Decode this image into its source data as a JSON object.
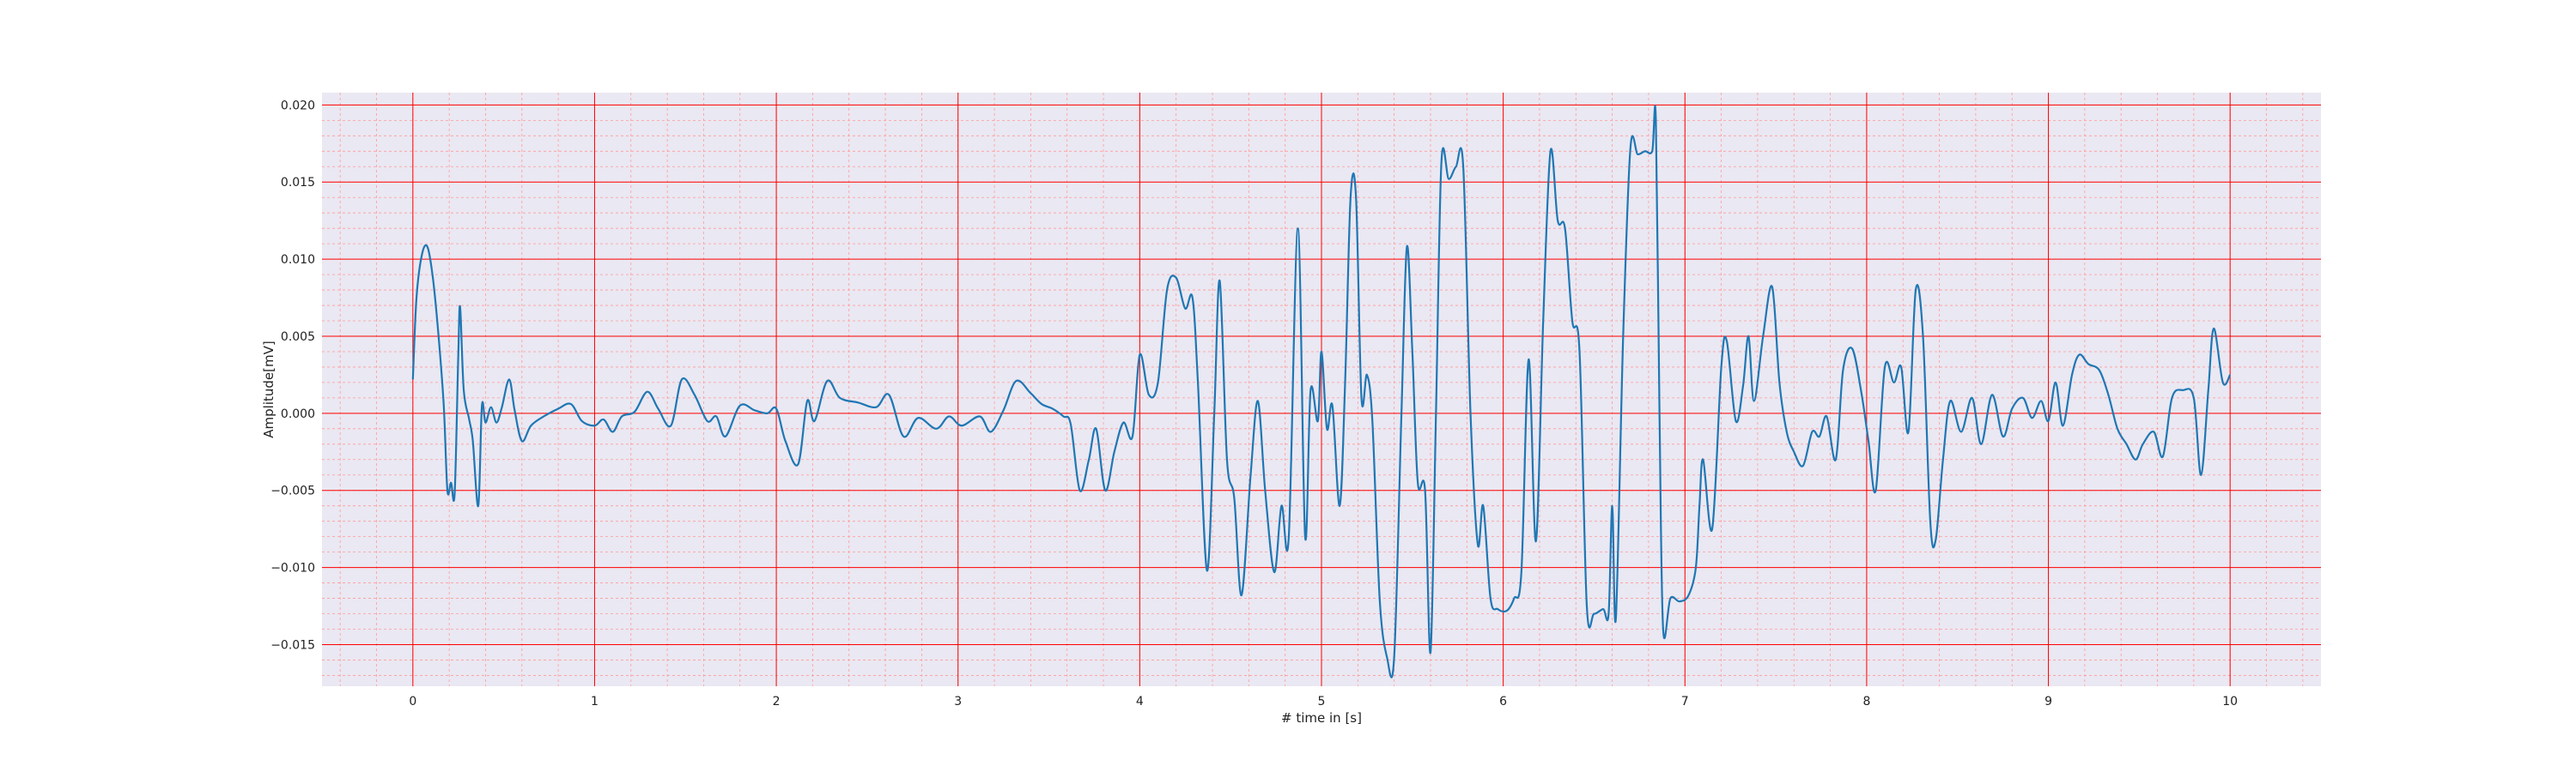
{
  "chart_data": {
    "type": "line",
    "title": "",
    "xlabel": "# time in [s]",
    "ylabel": "Amplitude[mV]",
    "xlim": [
      -0.5,
      10.5
    ],
    "ylim": [
      -0.0177,
      0.0208
    ],
    "x_ticks": [
      0,
      1,
      2,
      3,
      4,
      5,
      6,
      7,
      8,
      9,
      10
    ],
    "x_tick_labels": [
      "0",
      "1",
      "2",
      "3",
      "4",
      "5",
      "6",
      "7",
      "8",
      "9",
      "10"
    ],
    "y_ticks": [
      -0.015,
      -0.01,
      -0.005,
      0.0,
      0.005,
      0.01,
      0.015,
      0.02
    ],
    "y_tick_labels": [
      "−0.015",
      "−0.010",
      "−0.005",
      "0.000",
      "0.005",
      "0.010",
      "0.015",
      "0.020"
    ],
    "grid": {
      "major": true,
      "minor": true,
      "major_color": "#ff0000",
      "minor_color": "#ff9a9a"
    },
    "background_color": "#eae8f2",
    "series": [
      {
        "color": "#1f77b4",
        "points": [
          [
            0.0,
            0.0022
          ],
          [
            0.02,
            0.0075
          ],
          [
            0.05,
            0.0103
          ],
          [
            0.08,
            0.0108
          ],
          [
            0.11,
            0.0088
          ],
          [
            0.14,
            0.0052
          ],
          [
            0.17,
            0.0005
          ],
          [
            0.19,
            -0.005
          ],
          [
            0.21,
            -0.0045
          ],
          [
            0.23,
            -0.0052
          ],
          [
            0.25,
            0.0038
          ],
          [
            0.26,
            0.0069
          ],
          [
            0.28,
            0.0015
          ],
          [
            0.31,
            -0.0004
          ],
          [
            0.33,
            -0.0018
          ],
          [
            0.36,
            -0.006
          ],
          [
            0.38,
            0.0005
          ],
          [
            0.4,
            -0.0006
          ],
          [
            0.43,
            0.0004
          ],
          [
            0.46,
            -0.0006
          ],
          [
            0.49,
            0.0004
          ],
          [
            0.53,
            0.0022
          ],
          [
            0.56,
            0.0002
          ],
          [
            0.6,
            -0.0018
          ],
          [
            0.65,
            -0.0008
          ],
          [
            0.72,
            -0.0002
          ],
          [
            0.8,
            0.0003
          ],
          [
            0.87,
            0.0006
          ],
          [
            0.93,
            -0.0005
          ],
          [
            1.0,
            -0.0008
          ],
          [
            1.05,
            -0.0004
          ],
          [
            1.1,
            -0.0012
          ],
          [
            1.15,
            -0.0002
          ],
          [
            1.22,
            0.0001
          ],
          [
            1.29,
            0.0014
          ],
          [
            1.35,
            0.0003
          ],
          [
            1.42,
            -0.0008
          ],
          [
            1.48,
            0.0022
          ],
          [
            1.55,
            0.0012
          ],
          [
            1.62,
            -0.0005
          ],
          [
            1.67,
            -0.0002
          ],
          [
            1.72,
            -0.0015
          ],
          [
            1.8,
            0.0005
          ],
          [
            1.88,
            0.0002
          ],
          [
            1.95,
            0.0
          ],
          [
            2.0,
            0.0003
          ],
          [
            2.05,
            -0.0018
          ],
          [
            2.12,
            -0.0033
          ],
          [
            2.17,
            0.0008
          ],
          [
            2.21,
            -0.0005
          ],
          [
            2.28,
            0.0021
          ],
          [
            2.35,
            0.001
          ],
          [
            2.45,
            0.0007
          ],
          [
            2.55,
            0.0004
          ],
          [
            2.62,
            0.0012
          ],
          [
            2.7,
            -0.0015
          ],
          [
            2.78,
            -0.0003
          ],
          [
            2.88,
            -0.001
          ],
          [
            2.95,
            -0.0002
          ],
          [
            3.02,
            -0.0008
          ],
          [
            3.12,
            -0.0002
          ],
          [
            3.18,
            -0.0012
          ],
          [
            3.25,
            0.0002
          ],
          [
            3.32,
            0.0021
          ],
          [
            3.4,
            0.0013
          ],
          [
            3.46,
            0.0006
          ],
          [
            3.52,
            0.0003
          ],
          [
            3.58,
            -0.0002
          ],
          [
            3.62,
            -0.0007
          ],
          [
            3.67,
            -0.005
          ],
          [
            3.72,
            -0.003
          ],
          [
            3.76,
            -0.001
          ],
          [
            3.81,
            -0.005
          ],
          [
            3.86,
            -0.0025
          ],
          [
            3.91,
            -0.0006
          ],
          [
            3.96,
            -0.0015
          ],
          [
            4.0,
            0.0038
          ],
          [
            4.05,
            0.0012
          ],
          [
            4.1,
            0.002
          ],
          [
            4.15,
            0.008
          ],
          [
            4.2,
            0.0088
          ],
          [
            4.25,
            0.0068
          ],
          [
            4.29,
            0.0075
          ],
          [
            4.32,
            0.002
          ],
          [
            4.37,
            -0.0102
          ],
          [
            4.41,
            0.0
          ],
          [
            4.44,
            0.0086
          ],
          [
            4.48,
            -0.003
          ],
          [
            4.52,
            -0.0055
          ],
          [
            4.56,
            -0.0118
          ],
          [
            4.61,
            -0.004
          ],
          [
            4.65,
            0.0008
          ],
          [
            4.69,
            -0.005
          ],
          [
            4.74,
            -0.0103
          ],
          [
            4.78,
            -0.006
          ],
          [
            4.82,
            -0.008
          ],
          [
            4.87,
            0.012
          ],
          [
            4.91,
            -0.008
          ],
          [
            4.94,
            0.0015
          ],
          [
            4.98,
            -0.0005
          ],
          [
            5.0,
            0.004
          ],
          [
            5.03,
            -0.001
          ],
          [
            5.06,
            0.0005
          ],
          [
            5.1,
            -0.006
          ],
          [
            5.13,
            0.002
          ],
          [
            5.16,
            0.014
          ],
          [
            5.19,
            0.014
          ],
          [
            5.22,
            0.001
          ],
          [
            5.25,
            0.0025
          ],
          [
            5.28,
            -0.0005
          ],
          [
            5.32,
            -0.012
          ],
          [
            5.36,
            -0.0158
          ],
          [
            5.4,
            -0.0158
          ],
          [
            5.44,
            0.0
          ],
          [
            5.47,
            0.0108
          ],
          [
            5.5,
            0.004
          ],
          [
            5.53,
            -0.0045
          ],
          [
            5.57,
            -0.005
          ],
          [
            5.6,
            -0.0155
          ],
          [
            5.63,
            0.0
          ],
          [
            5.66,
            0.0163
          ],
          [
            5.7,
            0.0152
          ],
          [
            5.74,
            0.016
          ],
          [
            5.78,
            0.016
          ],
          [
            5.82,
            0.0
          ],
          [
            5.86,
            -0.0085
          ],
          [
            5.89,
            -0.006
          ],
          [
            5.93,
            -0.012
          ],
          [
            5.97,
            -0.0127
          ],
          [
            6.02,
            -0.0128
          ],
          [
            6.06,
            -0.012
          ],
          [
            6.1,
            -0.0103
          ],
          [
            6.14,
            0.0035
          ],
          [
            6.18,
            -0.0083
          ],
          [
            6.22,
            0.006
          ],
          [
            6.26,
            0.017
          ],
          [
            6.3,
            0.0125
          ],
          [
            6.34,
            0.012
          ],
          [
            6.38,
            0.006
          ],
          [
            6.42,
            0.004
          ],
          [
            6.46,
            -0.0125
          ],
          [
            6.5,
            -0.013
          ],
          [
            6.55,
            -0.0127
          ],
          [
            6.58,
            -0.013
          ],
          [
            6.6,
            -0.006
          ],
          [
            6.62,
            -0.0133
          ],
          [
            6.66,
            0.005
          ],
          [
            6.7,
            0.0172
          ],
          [
            6.74,
            0.0168
          ],
          [
            6.78,
            0.017
          ],
          [
            6.82,
            0.017
          ],
          [
            6.84,
            0.019
          ],
          [
            6.86,
            0.0
          ],
          [
            6.88,
            -0.014
          ],
          [
            6.92,
            -0.012
          ],
          [
            6.97,
            -0.0122
          ],
          [
            7.02,
            -0.0118
          ],
          [
            7.06,
            -0.01
          ],
          [
            7.08,
            -0.006
          ],
          [
            7.1,
            -0.003
          ],
          [
            7.15,
            -0.0075
          ],
          [
            7.2,
            0.003
          ],
          [
            7.23,
            0.0047
          ],
          [
            7.28,
            -0.0005
          ],
          [
            7.32,
            0.0018
          ],
          [
            7.35,
            0.005
          ],
          [
            7.38,
            0.0008
          ],
          [
            7.43,
            0.005
          ],
          [
            7.48,
            0.0082
          ],
          [
            7.52,
            0.002
          ],
          [
            7.56,
            -0.0012
          ],
          [
            7.6,
            -0.0025
          ],
          [
            7.65,
            -0.0034
          ],
          [
            7.7,
            -0.0012
          ],
          [
            7.74,
            -0.0015
          ],
          [
            7.78,
            -0.0002
          ],
          [
            7.83,
            -0.003
          ],
          [
            7.87,
            0.0028
          ],
          [
            7.92,
            0.0042
          ],
          [
            7.97,
            0.0014
          ],
          [
            8.01,
            -0.0018
          ],
          [
            8.05,
            -0.005
          ],
          [
            8.1,
            0.003
          ],
          [
            8.15,
            0.002
          ],
          [
            8.19,
            0.003
          ],
          [
            8.23,
            -0.0012
          ],
          [
            8.27,
            0.008
          ],
          [
            8.31,
            0.005
          ],
          [
            8.35,
            -0.007
          ],
          [
            8.38,
            -0.0082
          ],
          [
            8.42,
            -0.003
          ],
          [
            8.46,
            0.0008
          ],
          [
            8.52,
            -0.0012
          ],
          [
            8.58,
            0.001
          ],
          [
            8.63,
            -0.002
          ],
          [
            8.69,
            0.0012
          ],
          [
            8.75,
            -0.0015
          ],
          [
            8.8,
            0.0003
          ],
          [
            8.86,
            0.001
          ],
          [
            8.91,
            -0.0003
          ],
          [
            8.96,
            0.0008
          ],
          [
            9.0,
            -0.0005
          ],
          [
            9.04,
            0.002
          ],
          [
            9.08,
            -0.0008
          ],
          [
            9.13,
            0.0025
          ],
          [
            9.17,
            0.0038
          ],
          [
            9.22,
            0.0032
          ],
          [
            9.28,
            0.0028
          ],
          [
            9.33,
            0.0012
          ],
          [
            9.38,
            -0.001
          ],
          [
            9.43,
            -0.002
          ],
          [
            9.48,
            -0.003
          ],
          [
            9.52,
            -0.002
          ],
          [
            9.58,
            -0.0012
          ],
          [
            9.63,
            -0.0028
          ],
          [
            9.68,
            0.001
          ],
          [
            9.74,
            0.0015
          ],
          [
            9.8,
            0.001
          ],
          [
            9.84,
            -0.004
          ],
          [
            9.88,
            0.0015
          ],
          [
            9.91,
            0.0055
          ],
          [
            9.96,
            0.002
          ],
          [
            10.0,
            0.0025
          ]
        ]
      }
    ]
  }
}
